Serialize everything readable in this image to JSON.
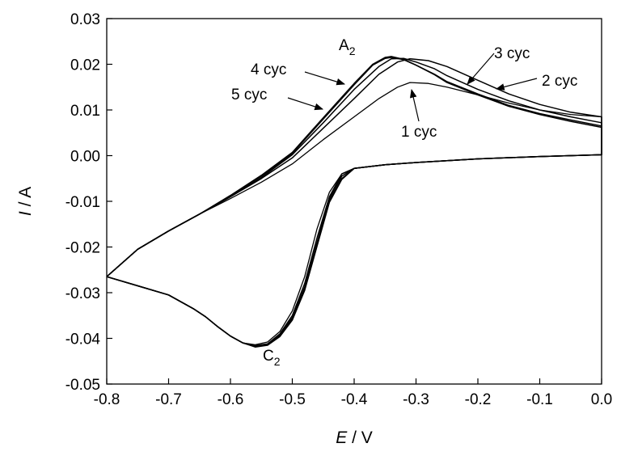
{
  "chart_data": {
    "type": "line",
    "title": "",
    "xlabel_italic": "E",
    "xlabel_rest": " / V",
    "ylabel_italic": "I",
    "ylabel_rest": " / A",
    "xlim": [
      -0.8,
      0.0
    ],
    "ylim": [
      -0.05,
      0.03
    ],
    "x_ticks": [
      -0.8,
      -0.7,
      -0.6,
      -0.5,
      -0.4,
      -0.3,
      -0.2,
      -0.1,
      0.0
    ],
    "x_tick_labels": [
      "-0.8",
      "-0.7",
      "-0.6",
      "-0.5",
      "-0.4",
      "-0.3",
      "-0.2",
      "-0.1",
      "0.0"
    ],
    "y_ticks": [
      -0.05,
      -0.04,
      -0.03,
      -0.02,
      -0.01,
      0.0,
      0.01,
      0.02,
      0.03
    ],
    "y_tick_labels": [
      "-0.05",
      "-0.04",
      "-0.03",
      "-0.02",
      "-0.01",
      "0.00",
      "0.01",
      "0.02",
      "0.03"
    ],
    "grid": false,
    "line_color": "#000000",
    "series": [
      {
        "label": "1 cyc",
        "x": [
          -0.8,
          -0.75,
          -0.7,
          -0.65,
          -0.6,
          -0.55,
          -0.5,
          -0.45,
          -0.4,
          -0.36,
          -0.33,
          -0.31,
          -0.28,
          -0.25,
          -0.2,
          -0.15,
          -0.1,
          -0.05,
          0.0,
          0.0,
          -0.1,
          -0.2,
          -0.3,
          -0.35,
          -0.4,
          -0.42,
          -0.44,
          -0.46,
          -0.48,
          -0.5,
          -0.52,
          -0.54,
          -0.56,
          -0.58,
          -0.6,
          -0.62,
          -0.64,
          -0.66,
          -0.7,
          -0.75,
          -0.8
        ],
        "y": [
          -0.0265,
          -0.0205,
          -0.0165,
          -0.0128,
          -0.0094,
          -0.0058,
          -0.0018,
          0.0035,
          0.0085,
          0.0125,
          0.015,
          0.016,
          0.0158,
          0.015,
          0.0133,
          0.0115,
          0.01,
          0.009,
          0.0085,
          0.0002,
          -0.0002,
          -0.0007,
          -0.0015,
          -0.002,
          -0.0028,
          -0.004,
          -0.008,
          -0.016,
          -0.0265,
          -0.034,
          -0.0385,
          -0.0408,
          -0.0414,
          -0.041,
          -0.0395,
          -0.0375,
          -0.0353,
          -0.0335,
          -0.0305,
          -0.0285,
          -0.0265
        ]
      },
      {
        "label": "2 cyc",
        "x": [
          -0.8,
          -0.75,
          -0.7,
          -0.65,
          -0.6,
          -0.55,
          -0.5,
          -0.45,
          -0.4,
          -0.36,
          -0.33,
          -0.31,
          -0.28,
          -0.25,
          -0.2,
          -0.15,
          -0.1,
          -0.05,
          0.0,
          0.0,
          -0.1,
          -0.2,
          -0.3,
          -0.35,
          -0.4,
          -0.42,
          -0.44,
          -0.46,
          -0.48,
          -0.5,
          -0.52,
          -0.54,
          -0.56,
          -0.58,
          -0.6,
          -0.62,
          -0.64,
          -0.66,
          -0.7,
          -0.75,
          -0.8
        ],
        "y": [
          -0.0265,
          -0.0205,
          -0.0165,
          -0.0128,
          -0.009,
          -0.005,
          -0.0005,
          0.006,
          0.0125,
          0.0178,
          0.0205,
          0.0212,
          0.0208,
          0.0195,
          0.0165,
          0.0135,
          0.0112,
          0.0095,
          0.0085,
          0.0002,
          -0.0002,
          -0.0007,
          -0.0015,
          -0.002,
          -0.0028,
          -0.004,
          -0.009,
          -0.018,
          -0.028,
          -0.035,
          -0.039,
          -0.0412,
          -0.0416,
          -0.041,
          -0.0395,
          -0.0375,
          -0.0353,
          -0.0335,
          -0.0305,
          -0.0285,
          -0.0265
        ]
      },
      {
        "label": "3 cyc",
        "x": [
          -0.8,
          -0.75,
          -0.7,
          -0.65,
          -0.6,
          -0.55,
          -0.5,
          -0.45,
          -0.4,
          -0.36,
          -0.34,
          -0.32,
          -0.3,
          -0.27,
          -0.25,
          -0.2,
          -0.15,
          -0.1,
          -0.05,
          0.0,
          0.0,
          -0.1,
          -0.2,
          -0.3,
          -0.35,
          -0.4,
          -0.42,
          -0.44,
          -0.46,
          -0.48,
          -0.5,
          -0.52,
          -0.54,
          -0.56,
          -0.58,
          -0.6,
          -0.62,
          -0.64,
          -0.66,
          -0.7,
          -0.75,
          -0.8
        ],
        "y": [
          -0.0265,
          -0.0205,
          -0.0165,
          -0.0128,
          -0.009,
          -0.0048,
          0.0002,
          0.0072,
          0.0145,
          0.0195,
          0.0212,
          0.0213,
          0.0205,
          0.019,
          0.0175,
          0.0145,
          0.012,
          0.01,
          0.0085,
          0.0072,
          0.0002,
          -0.0002,
          -0.0007,
          -0.0015,
          -0.002,
          -0.0028,
          -0.0045,
          -0.0095,
          -0.019,
          -0.0288,
          -0.0355,
          -0.0393,
          -0.0413,
          -0.0417,
          -0.041,
          -0.0395,
          -0.0375,
          -0.0353,
          -0.0335,
          -0.0305,
          -0.0285,
          -0.0265
        ]
      },
      {
        "label": "4 cyc",
        "x": [
          -0.8,
          -0.75,
          -0.7,
          -0.65,
          -0.6,
          -0.55,
          -0.5,
          -0.45,
          -0.4,
          -0.37,
          -0.35,
          -0.34,
          -0.32,
          -0.3,
          -0.27,
          -0.25,
          -0.2,
          -0.15,
          -0.1,
          -0.05,
          0.0,
          0.0,
          -0.1,
          -0.2,
          -0.3,
          -0.35,
          -0.4,
          -0.42,
          -0.44,
          -0.46,
          -0.48,
          -0.5,
          -0.52,
          -0.54,
          -0.56,
          -0.58,
          -0.6,
          -0.62,
          -0.64,
          -0.66,
          -0.7,
          -0.75,
          -0.8
        ],
        "y": [
          -0.0265,
          -0.0205,
          -0.0165,
          -0.0128,
          -0.0088,
          -0.0045,
          0.0005,
          0.008,
          0.0155,
          0.0198,
          0.0213,
          0.0215,
          0.021,
          0.0198,
          0.0178,
          0.0162,
          0.0135,
          0.011,
          0.0092,
          0.0078,
          0.0065,
          0.0002,
          -0.0002,
          -0.0007,
          -0.0015,
          -0.002,
          -0.0028,
          -0.005,
          -0.01,
          -0.0195,
          -0.0292,
          -0.0358,
          -0.0395,
          -0.0414,
          -0.0418,
          -0.041,
          -0.0395,
          -0.0375,
          -0.0353,
          -0.0335,
          -0.0305,
          -0.0285,
          -0.0265
        ]
      },
      {
        "label": "5 cyc",
        "x": [
          -0.8,
          -0.75,
          -0.7,
          -0.65,
          -0.6,
          -0.55,
          -0.5,
          -0.45,
          -0.4,
          -0.37,
          -0.35,
          -0.34,
          -0.32,
          -0.3,
          -0.27,
          -0.25,
          -0.2,
          -0.15,
          -0.1,
          -0.05,
          0.0,
          0.0,
          -0.1,
          -0.2,
          -0.3,
          -0.35,
          -0.4,
          -0.42,
          -0.44,
          -0.46,
          -0.48,
          -0.5,
          -0.52,
          -0.54,
          -0.56,
          -0.58,
          -0.6,
          -0.62,
          -0.64,
          -0.66,
          -0.7,
          -0.75,
          -0.8
        ],
        "y": [
          -0.0265,
          -0.0205,
          -0.0165,
          -0.0128,
          -0.0087,
          -0.0043,
          0.0007,
          0.0083,
          0.0158,
          0.02,
          0.0215,
          0.0217,
          0.0211,
          0.0198,
          0.0177,
          0.016,
          0.0133,
          0.0108,
          0.009,
          0.0075,
          0.0062,
          0.0002,
          -0.0002,
          -0.0007,
          -0.0015,
          -0.002,
          -0.0028,
          -0.0052,
          -0.0102,
          -0.0198,
          -0.0295,
          -0.036,
          -0.0396,
          -0.0415,
          -0.0419,
          -0.041,
          -0.0395,
          -0.0375,
          -0.0353,
          -0.0335,
          -0.0305,
          -0.0285,
          -0.0265
        ]
      }
    ],
    "annotations": [
      {
        "id": "label-4cyc",
        "text": "4 cyc",
        "arrow_to": [
          -0.41,
          0.0155
        ]
      },
      {
        "id": "label-5cyc",
        "text": "5 cyc",
        "arrow_to": [
          -0.45,
          0.0098
        ]
      },
      {
        "id": "label-3cyc",
        "text": "3 cyc",
        "arrow_to": [
          -0.29,
          0.0178
        ]
      },
      {
        "id": "label-2cyc",
        "text": "2 cyc",
        "arrow_to": [
          -0.17,
          0.0143
        ]
      },
      {
        "id": "label-1cyc",
        "text": "1 cyc",
        "arrow_to": [
          -0.31,
          0.0145
        ]
      },
      {
        "id": "label-A2",
        "text": "A",
        "sub": "2"
      },
      {
        "id": "label-C2",
        "text": "C",
        "sub": "2"
      }
    ]
  }
}
